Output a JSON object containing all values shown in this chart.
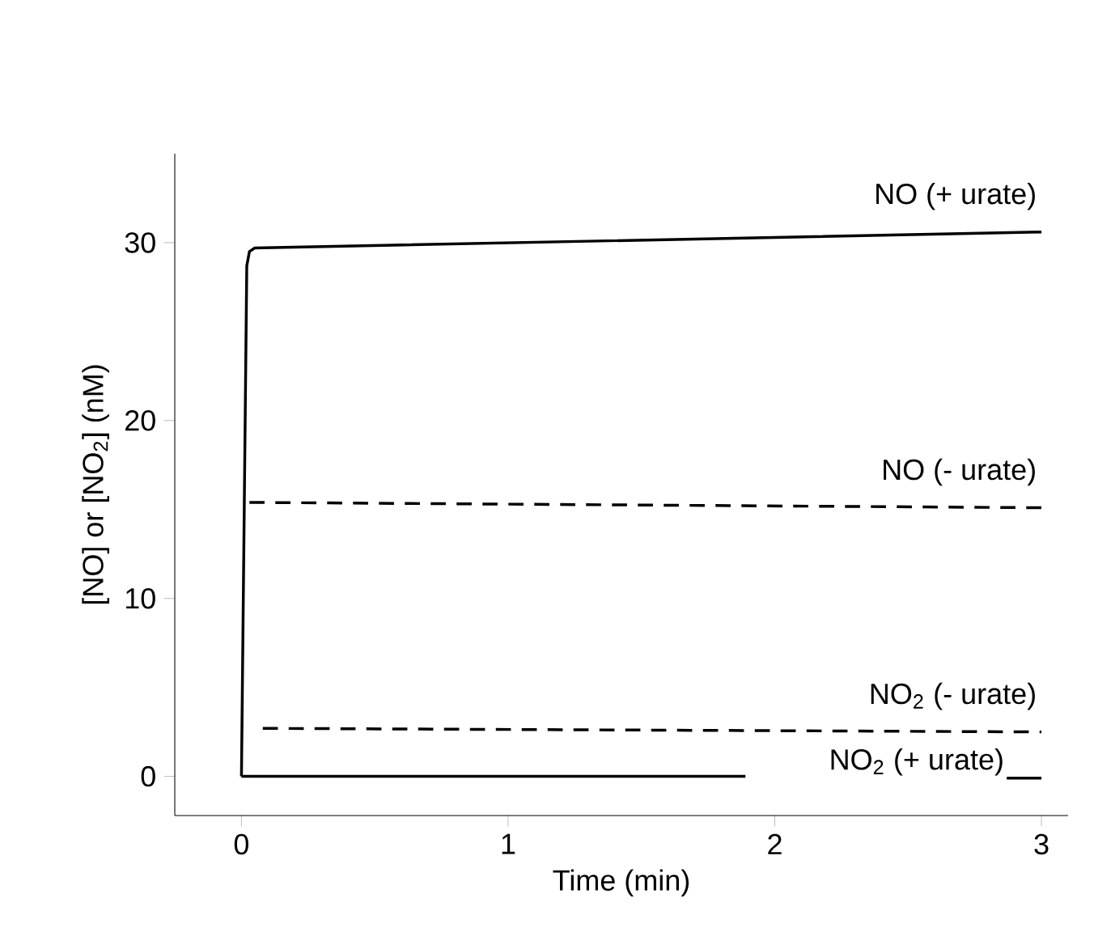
{
  "chart_data": {
    "type": "line",
    "xlabel": "Time (min)",
    "ylabel": "[NO] or [NO$_{2}$] (nM)",
    "xlim": [
      -0.25,
      3.1
    ],
    "ylim": [
      -2.2,
      35
    ],
    "xticks": [
      0,
      1,
      2,
      3
    ],
    "yticks": [
      0,
      10,
      20,
      30
    ],
    "grid": false,
    "series": [
      {
        "name": "NO (+ urate)",
        "color": "#000000",
        "line_style": "solid",
        "x": [
          0,
          0.02,
          0.03,
          0.05,
          3
        ],
        "values": [
          0,
          28.7,
          29.5,
          29.7,
          30.6
        ]
      },
      {
        "name": "NO (- urate)",
        "color": "#000000",
        "line_style": "dashed",
        "x": [
          0.03,
          3
        ],
        "values": [
          15.4,
          15.1
        ]
      },
      {
        "name": "NO$_{2}$ (- urate)",
        "color": "#000000",
        "line_style": "dashed",
        "x": [
          0.08,
          3
        ],
        "values": [
          2.7,
          2.5
        ]
      },
      {
        "name": "NO$_{2}$ (+ urate)",
        "color": "#000000",
        "line_style": "solid",
        "x": [
          0,
          1.89,
          2.4,
          2.87,
          3
        ],
        "values": [
          0,
          0,
          null,
          -0.1,
          -0.1
        ]
      }
    ]
  }
}
